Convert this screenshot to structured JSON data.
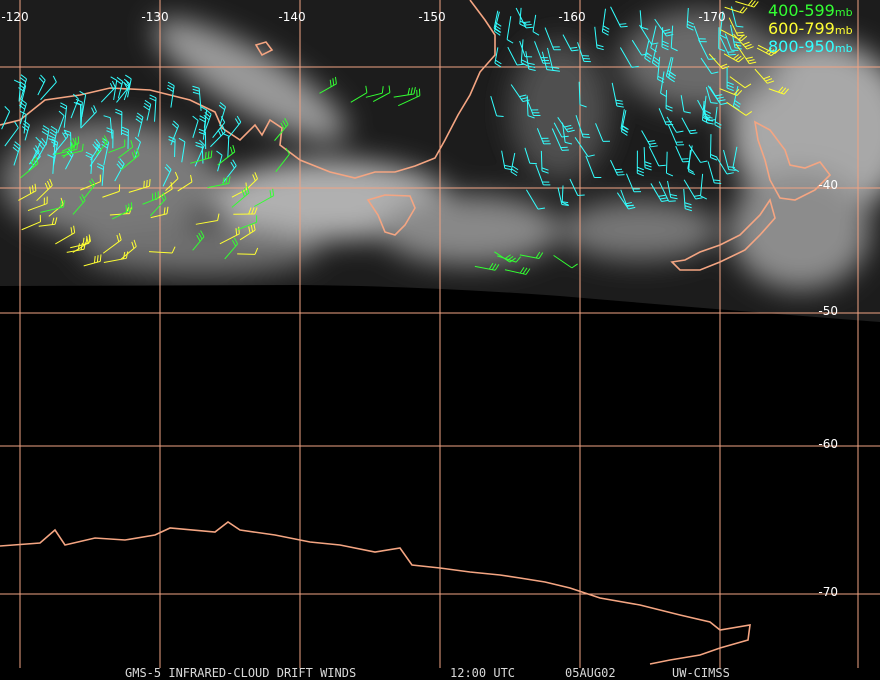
{
  "map": {
    "lon_labels": [
      "-120",
      "-130",
      "-140",
      "-150",
      "-160",
      "-170"
    ],
    "lat_labels": [
      "-40",
      "-50",
      "-60",
      "-70"
    ],
    "legend": [
      {
        "range": "400-599",
        "unit": "mb",
        "color": "#33ff33"
      },
      {
        "range": "600-799",
        "unit": "mb",
        "color": "#ffff33"
      },
      {
        "range": "800-950",
        "unit": "mb",
        "color": "#33ffff"
      }
    ],
    "footer": [
      "GMS-5 INFRARED-CLOUD DRIFT WINDS",
      "12:00 UTC",
      "05AUG02",
      "UW-CIMSS"
    ]
  }
}
